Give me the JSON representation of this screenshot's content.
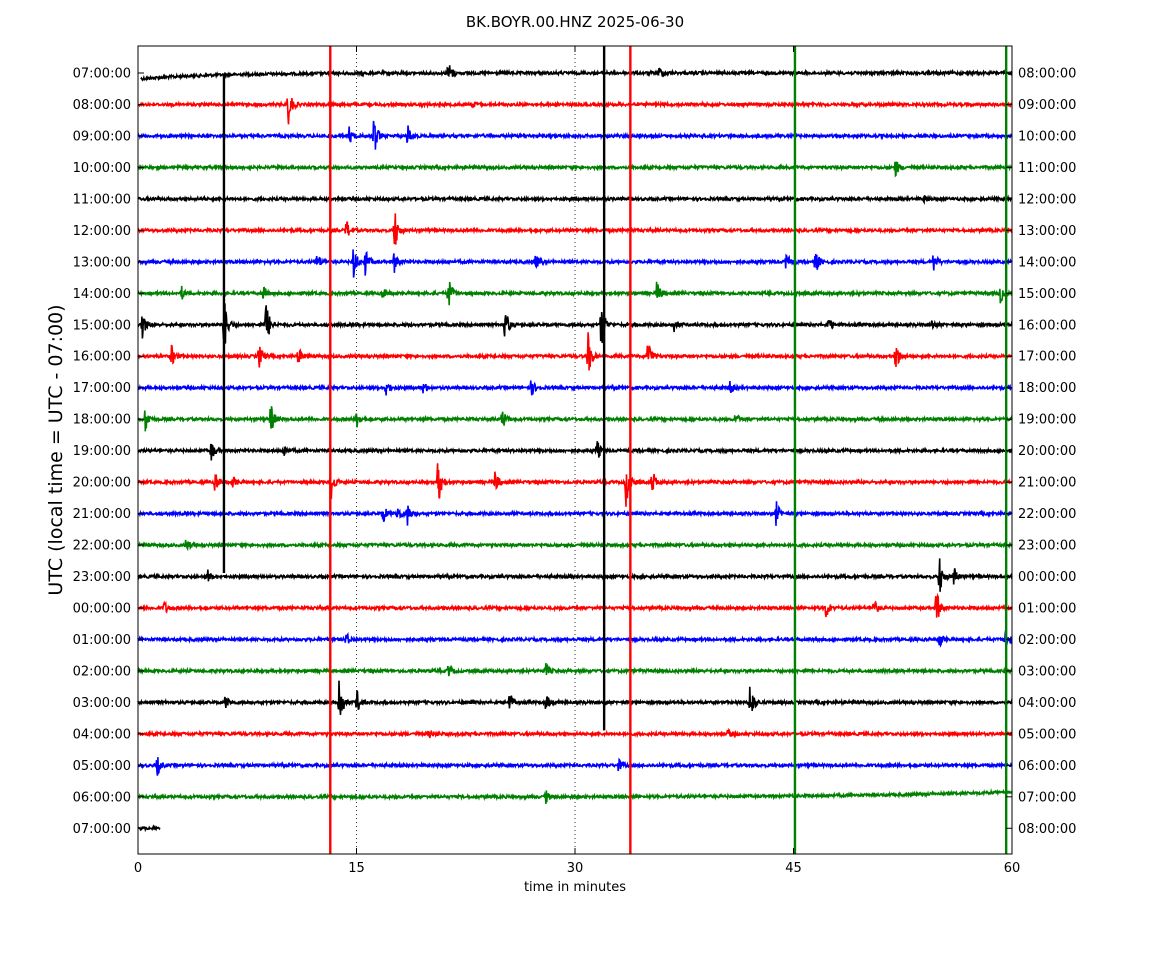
{
  "chart_data": {
    "type": "line",
    "title": "BK.BOYR.00.HNZ 2025-06-30",
    "xlabel": "time in minutes",
    "ylabel": "UTC (local time = UTC - 07:00)",
    "xlim": [
      0,
      60
    ],
    "x_ticks": [
      0,
      15,
      30,
      45,
      60
    ],
    "x_tick_labels": [
      "0",
      "15",
      "30",
      "45",
      "60"
    ],
    "dotted_grid_x": [
      15,
      30
    ],
    "colors": [
      "#000000",
      "#ff0000",
      "#0000ff",
      "#008000"
    ],
    "left_labels": [
      "07:00:00",
      "08:00:00",
      "09:00:00",
      "10:00:00",
      "11:00:00",
      "12:00:00",
      "13:00:00",
      "14:00:00",
      "15:00:00",
      "16:00:00",
      "17:00:00",
      "18:00:00",
      "19:00:00",
      "20:00:00",
      "21:00:00",
      "22:00:00",
      "23:00:00",
      "00:00:00",
      "01:00:00",
      "02:00:00",
      "03:00:00",
      "04:00:00",
      "05:00:00",
      "06:00:00",
      "07:00:00"
    ],
    "right_labels": [
      "08:00:00",
      "09:00:00",
      "10:00:00",
      "11:00:00",
      "12:00:00",
      "13:00:00",
      "14:00:00",
      "15:00:00",
      "16:00:00",
      "17:00:00",
      "18:00:00",
      "19:00:00",
      "20:00:00",
      "21:00:00",
      "22:00:00",
      "23:00:00",
      "00:00:00",
      "01:00:00",
      "02:00:00",
      "03:00:00",
      "04:00:00",
      "05:00:00",
      "06:00:00",
      "07:00:00",
      "08:00:00"
    ],
    "trace_coverage": {
      "first_trace_start_minute": 0.2,
      "last_trace_end_minute": 1.5
    },
    "transients": [
      {
        "minute": 13.2,
        "color": "#ff0000",
        "from_trace": 0,
        "to_trace": 24
      },
      {
        "minute": 33.8,
        "color": "#ff0000",
        "from_trace": 0,
        "to_trace": 24
      },
      {
        "minute": 32.0,
        "color": "#000000",
        "from_trace": 0,
        "to_trace": 20
      },
      {
        "minute": 45.1,
        "color": "#008000",
        "from_trace": 0,
        "to_trace": 24
      },
      {
        "minute": 59.6,
        "color": "#008000",
        "from_trace": 0,
        "to_trace": 24
      },
      {
        "minute": 5.9,
        "color": "#000000",
        "from_trace": 1,
        "to_trace": 15
      }
    ],
    "events": [
      {
        "trace": 0,
        "minute": 21.3,
        "amp": 0.6
      },
      {
        "trace": 0,
        "minute": 35.8,
        "amp": 0.3
      },
      {
        "trace": 1,
        "minute": 10.3,
        "amp": 1.0
      },
      {
        "trace": 1,
        "minute": 23.0,
        "amp": 0.15
      },
      {
        "trace": 2,
        "minute": 14.5,
        "amp": 0.4
      },
      {
        "trace": 2,
        "minute": 16.2,
        "amp": 1.0
      },
      {
        "trace": 2,
        "minute": 18.5,
        "amp": 0.5
      },
      {
        "trace": 3,
        "minute": 52.0,
        "amp": 0.4
      },
      {
        "trace": 4,
        "minute": 54.0,
        "amp": 0.2
      },
      {
        "trace": 5,
        "minute": 14.3,
        "amp": 0.5
      },
      {
        "trace": 5,
        "minute": 17.6,
        "amp": 1.1
      },
      {
        "trace": 6,
        "minute": 12.3,
        "amp": 0.4
      },
      {
        "trace": 6,
        "minute": 14.8,
        "amp": 0.8
      },
      {
        "trace": 6,
        "minute": 15.6,
        "amp": 0.6
      },
      {
        "trace": 6,
        "minute": 17.6,
        "amp": 0.5
      },
      {
        "trace": 6,
        "minute": 27.3,
        "amp": 0.4
      },
      {
        "trace": 6,
        "minute": 44.5,
        "amp": 0.4
      },
      {
        "trace": 6,
        "minute": 46.5,
        "amp": 0.6
      },
      {
        "trace": 6,
        "minute": 54.6,
        "amp": 0.5
      },
      {
        "trace": 7,
        "minute": 3.0,
        "amp": 0.3
      },
      {
        "trace": 7,
        "minute": 8.6,
        "amp": 0.3
      },
      {
        "trace": 7,
        "minute": 16.8,
        "amp": 0.3
      },
      {
        "trace": 7,
        "minute": 21.3,
        "amp": 0.8
      },
      {
        "trace": 7,
        "minute": 35.6,
        "amp": 0.6
      },
      {
        "trace": 7,
        "minute": 59.2,
        "amp": 0.5
      },
      {
        "trace": 8,
        "minute": 0.3,
        "amp": 0.6
      },
      {
        "trace": 8,
        "minute": 5.9,
        "amp": 1.4
      },
      {
        "trace": 8,
        "minute": 8.8,
        "amp": 1.1
      },
      {
        "trace": 8,
        "minute": 25.2,
        "amp": 0.8
      },
      {
        "trace": 8,
        "minute": 31.8,
        "amp": 1.2
      },
      {
        "trace": 8,
        "minute": 36.8,
        "amp": 0.3
      },
      {
        "trace": 8,
        "minute": 47.4,
        "amp": 0.4
      },
      {
        "trace": 8,
        "minute": 54.5,
        "amp": 0.2
      },
      {
        "trace": 9,
        "minute": 2.3,
        "amp": 0.5
      },
      {
        "trace": 9,
        "minute": 8.3,
        "amp": 0.6
      },
      {
        "trace": 9,
        "minute": 11.0,
        "amp": 0.4
      },
      {
        "trace": 9,
        "minute": 30.9,
        "amp": 1.1
      },
      {
        "trace": 9,
        "minute": 35.0,
        "amp": 1.0
      },
      {
        "trace": 9,
        "minute": 52.0,
        "amp": 0.8
      },
      {
        "trace": 10,
        "minute": 17.0,
        "amp": 0.4
      },
      {
        "trace": 10,
        "minute": 19.6,
        "amp": 0.3
      },
      {
        "trace": 10,
        "minute": 27.0,
        "amp": 0.4
      },
      {
        "trace": 10,
        "minute": 40.6,
        "amp": 0.3
      },
      {
        "trace": 11,
        "minute": 0.5,
        "amp": 0.6
      },
      {
        "trace": 11,
        "minute": 9.1,
        "amp": 0.8
      },
      {
        "trace": 11,
        "minute": 15.0,
        "amp": 0.4
      },
      {
        "trace": 11,
        "minute": 25.0,
        "amp": 0.5
      },
      {
        "trace": 11,
        "minute": 41.0,
        "amp": 0.3
      },
      {
        "trace": 12,
        "minute": 5.0,
        "amp": 0.5
      },
      {
        "trace": 12,
        "minute": 10.0,
        "amp": 0.3
      },
      {
        "trace": 12,
        "minute": 31.5,
        "amp": 0.5
      },
      {
        "trace": 13,
        "minute": 5.3,
        "amp": 0.5
      },
      {
        "trace": 13,
        "minute": 6.5,
        "amp": 0.3
      },
      {
        "trace": 13,
        "minute": 13.2,
        "amp": 1.0
      },
      {
        "trace": 13,
        "minute": 20.6,
        "amp": 1.2
      },
      {
        "trace": 13,
        "minute": 24.5,
        "amp": 0.5
      },
      {
        "trace": 13,
        "minute": 33.5,
        "amp": 1.1
      },
      {
        "trace": 13,
        "minute": 35.3,
        "amp": 0.6
      },
      {
        "trace": 14,
        "minute": 16.8,
        "amp": 0.5
      },
      {
        "trace": 14,
        "minute": 17.8,
        "amp": 0.4
      },
      {
        "trace": 14,
        "minute": 18.5,
        "amp": 0.5
      },
      {
        "trace": 14,
        "minute": 43.8,
        "amp": 0.6
      },
      {
        "trace": 15,
        "minute": 3.3,
        "amp": 0.3
      },
      {
        "trace": 16,
        "minute": 4.8,
        "amp": 0.3
      },
      {
        "trace": 16,
        "minute": 55.0,
        "amp": 1.0
      },
      {
        "trace": 16,
        "minute": 56.0,
        "amp": 0.5
      },
      {
        "trace": 17,
        "minute": 1.8,
        "amp": 0.3
      },
      {
        "trace": 17,
        "minute": 47.2,
        "amp": 0.6
      },
      {
        "trace": 17,
        "minute": 50.5,
        "amp": 0.4
      },
      {
        "trace": 17,
        "minute": 54.8,
        "amp": 0.9
      },
      {
        "trace": 18,
        "minute": 14.3,
        "amp": 0.3
      },
      {
        "trace": 18,
        "minute": 55.0,
        "amp": 0.4
      },
      {
        "trace": 18,
        "minute": 59.5,
        "amp": 0.7
      },
      {
        "trace": 19,
        "minute": 21.3,
        "amp": 0.3
      },
      {
        "trace": 19,
        "minute": 28.0,
        "amp": 0.3
      },
      {
        "trace": 20,
        "minute": 6.0,
        "amp": 0.3
      },
      {
        "trace": 20,
        "minute": 13.8,
        "amp": 1.4
      },
      {
        "trace": 20,
        "minute": 15.0,
        "amp": 0.6
      },
      {
        "trace": 20,
        "minute": 25.5,
        "amp": 0.5
      },
      {
        "trace": 20,
        "minute": 28.0,
        "amp": 0.4
      },
      {
        "trace": 20,
        "minute": 42.0,
        "amp": 1.0
      },
      {
        "trace": 21,
        "minute": 20.0,
        "amp": 0.2
      },
      {
        "trace": 21,
        "minute": 40.5,
        "amp": 0.2
      },
      {
        "trace": 22,
        "minute": 1.3,
        "amp": 0.5
      },
      {
        "trace": 22,
        "minute": 33.0,
        "amp": 0.3
      },
      {
        "trace": 23,
        "minute": 28.0,
        "amp": 0.3
      }
    ]
  }
}
